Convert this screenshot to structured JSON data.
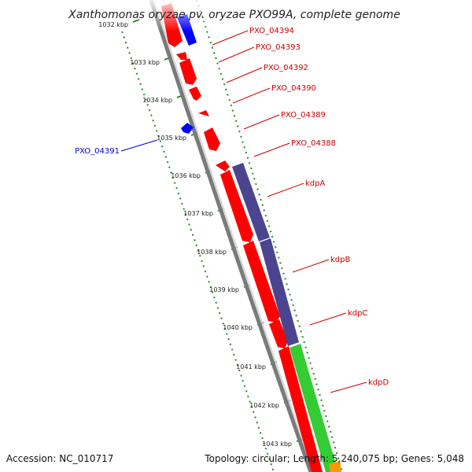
{
  "title": "Xanthomonas oryzae pv. oryzae PXO99A, complete genome",
  "footer": {
    "accession": "Accession: NC_010717",
    "summary": "Topology: circular; Length: 5,240,075 bp; Genes: 5,048"
  },
  "kbp_ticks": [
    {
      "label": "1032 kbp",
      "kbp": 1032
    },
    {
      "label": "1033 kbp",
      "kbp": 1033
    },
    {
      "label": "1034 kbp",
      "kbp": 1034
    },
    {
      "label": "1035 kbp",
      "kbp": 1035
    },
    {
      "label": "1036 kbp",
      "kbp": 1036
    },
    {
      "label": "1037 kbp",
      "kbp": 1037
    },
    {
      "label": "1038 kbp",
      "kbp": 1038
    },
    {
      "label": "1039 kbp",
      "kbp": 1039
    },
    {
      "label": "1040 kbp",
      "kbp": 1040
    },
    {
      "label": "1041 kbp",
      "kbp": 1041
    },
    {
      "label": "1042 kbp",
      "kbp": 1042
    },
    {
      "label": "1043 kbp",
      "kbp": 1043
    }
  ],
  "gene_labels": [
    {
      "name": "PXO_04394",
      "side": "right",
      "color": "#cc0000"
    },
    {
      "name": "PXO_04393",
      "side": "right",
      "color": "#cc0000"
    },
    {
      "name": "PXO_04392",
      "side": "right",
      "color": "#cc0000"
    },
    {
      "name": "PXO_04390",
      "side": "right",
      "color": "#cc0000"
    },
    {
      "name": "PXO_04389",
      "side": "right",
      "color": "#cc0000"
    },
    {
      "name": "PXO_04388",
      "side": "right",
      "color": "#cc0000"
    },
    {
      "name": "kdpA",
      "side": "right",
      "color": "#cc0000"
    },
    {
      "name": "kdpB",
      "side": "right",
      "color": "#cc0000"
    },
    {
      "name": "kdpC",
      "side": "right",
      "color": "#cc0000"
    },
    {
      "name": "kdpD",
      "side": "right",
      "color": "#cc0000"
    },
    {
      "name": "PXO_04391",
      "side": "left",
      "color": "#0000cc"
    }
  ],
  "colors": {
    "gene_red": "#ff0000",
    "gene_blue": "#0000ff",
    "rna_purple": "#4b4590",
    "rna_green": "#33cc33",
    "backbone": "#808080",
    "tick_green": "#228b22"
  }
}
